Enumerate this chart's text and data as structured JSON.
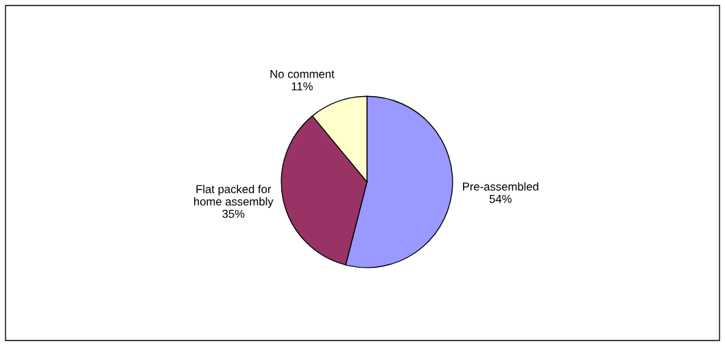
{
  "chart_data": {
    "type": "pie",
    "categories": [
      "Pre-assembled",
      "Flat packed for\nhome assembly",
      "No comment"
    ],
    "values": [
      54,
      35,
      11
    ],
    "value_labels": [
      "54%",
      "35%",
      "11%"
    ],
    "colors": [
      "#9999ff",
      "#993366",
      "#ffffcc"
    ],
    "legend": false
  }
}
